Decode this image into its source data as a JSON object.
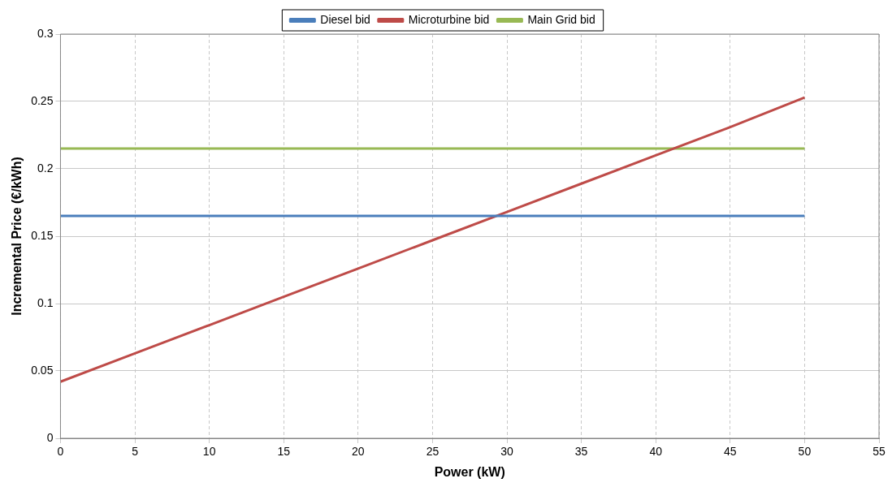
{
  "chart_data": {
    "type": "line",
    "xlabel": "Power (kW)",
    "ylabel": "Incremental Price (€/kWh)",
    "x": [
      0,
      5,
      10,
      15,
      20,
      25,
      30,
      35,
      40,
      45,
      50
    ],
    "series": [
      {
        "name": "Diesel bid",
        "color": "#4a7ebb",
        "values": [
          0.165,
          0.165,
          0.165,
          0.165,
          0.165,
          0.165,
          0.165,
          0.165,
          0.165,
          0.165,
          0.165
        ]
      },
      {
        "name": "Microturbine bid",
        "color": "#be4b48",
        "values": [
          0.042,
          0.063,
          0.084,
          0.105,
          0.126,
          0.147,
          0.168,
          0.189,
          0.21,
          0.231,
          0.253
        ]
      },
      {
        "name": "Main Grid bid",
        "color": "#98b954",
        "values": [
          0.215,
          0.215,
          0.215,
          0.215,
          0.215,
          0.215,
          0.215,
          0.215,
          0.215,
          0.215,
          0.215
        ]
      }
    ],
    "xlim": [
      0,
      55
    ],
    "xticks": [
      0,
      5,
      10,
      15,
      20,
      25,
      30,
      35,
      40,
      45,
      50,
      55
    ],
    "ylim": [
      0,
      0.3
    ],
    "yticks": [
      0,
      0.05,
      0.1,
      0.15,
      0.2,
      0.25,
      0.3
    ],
    "grid": true,
    "legend": "top",
    "marker": "none",
    "line_style": "solid"
  }
}
